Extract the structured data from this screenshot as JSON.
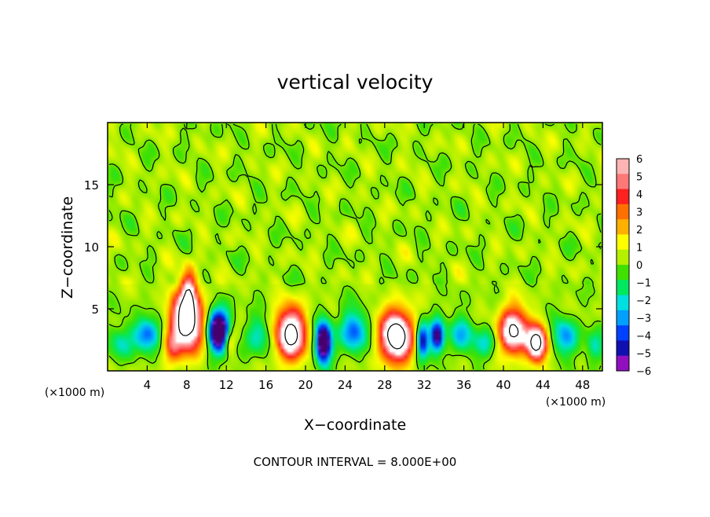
{
  "chart_data": {
    "type": "heatmap",
    "title": "vertical velocity",
    "xlabel": "X−coordinate",
    "ylabel": "Z−coordinate",
    "x_unit_left": "(×1000 m)",
    "x_unit_right": "(×1000 m)",
    "footer": "CONTOUR INTERVAL = 8.000E+00",
    "xlim": [
      0,
      50
    ],
    "ylim": [
      0,
      20
    ],
    "x_ticks": [
      4,
      8,
      12,
      16,
      20,
      24,
      28,
      32,
      36,
      40,
      44,
      48
    ],
    "x_tick_labels": [
      "4",
      "8",
      "12",
      "16",
      "20",
      "24",
      "28",
      "32",
      "36",
      "40",
      "44",
      "48"
    ],
    "y_ticks": [
      5,
      10,
      15
    ],
    "y_tick_labels": [
      "5",
      "10",
      "15"
    ],
    "colorbar": {
      "range": [
        -6,
        6
      ],
      "ticks": [
        6,
        5,
        4,
        3,
        2,
        1,
        0,
        -1,
        -2,
        -3,
        -4,
        -5,
        -6
      ],
      "tick_labels": [
        "6",
        "5",
        "4",
        "3",
        "2",
        "1",
        "0",
        "−1",
        "−2",
        "−3",
        "−4",
        "−5",
        "−6"
      ],
      "colors": [
        "#ffb4b4",
        "#ff7878",
        "#ff2020",
        "#ff7000",
        "#ffb000",
        "#ffff00",
        "#b4f000",
        "#40e000",
        "#00e860",
        "#00e0e0",
        "#00a0ff",
        "#0040ff",
        "#1010b0",
        "#9010c0"
      ]
    },
    "background_value": 0.3,
    "features": [
      {
        "x": 8.0,
        "z": 4.0,
        "amp": 10,
        "sx": 1.6,
        "sz": 2.4
      },
      {
        "x": 8.2,
        "z": 6.5,
        "amp": 4.5,
        "sx": 0.7,
        "sz": 1.6
      },
      {
        "x": 6.5,
        "z": 2.0,
        "amp": 2.5,
        "sx": 0.8,
        "sz": 1.4
      },
      {
        "x": 11.2,
        "z": 3.2,
        "amp": -9,
        "sx": 1.1,
        "sz": 1.7
      },
      {
        "x": 12.3,
        "z": 2.4,
        "amp": 3.2,
        "sx": 0.6,
        "sz": 1.0
      },
      {
        "x": 4.0,
        "z": 3.0,
        "amp": -4.5,
        "sx": 1.3,
        "sz": 1.3
      },
      {
        "x": 1.2,
        "z": 2.2,
        "amp": -2.2,
        "sx": 1.3,
        "sz": 1.3
      },
      {
        "x": 15.2,
        "z": 2.8,
        "amp": -2.5,
        "sx": 1.3,
        "sz": 1.6
      },
      {
        "x": 18.5,
        "z": 3.0,
        "amp": 9,
        "sx": 1.5,
        "sz": 2.0
      },
      {
        "x": 21.8,
        "z": 2.3,
        "amp": -9,
        "sx": 0.8,
        "sz": 1.6
      },
      {
        "x": 24.8,
        "z": 3.2,
        "amp": -4.5,
        "sx": 1.3,
        "sz": 1.6
      },
      {
        "x": 29.2,
        "z": 2.8,
        "amp": 10,
        "sx": 1.6,
        "sz": 2.0
      },
      {
        "x": 31.8,
        "z": 2.5,
        "amp": -6,
        "sx": 0.6,
        "sz": 1.4
      },
      {
        "x": 33.3,
        "z": 2.8,
        "amp": -7,
        "sx": 0.7,
        "sz": 1.3
      },
      {
        "x": 35.8,
        "z": 3.0,
        "amp": -3,
        "sx": 1.2,
        "sz": 1.4
      },
      {
        "x": 38.2,
        "z": 2.2,
        "amp": -2.5,
        "sx": 1.2,
        "sz": 1.2
      },
      {
        "x": 41.0,
        "z": 3.2,
        "amp": 8.5,
        "sx": 1.4,
        "sz": 1.8
      },
      {
        "x": 43.4,
        "z": 2.2,
        "amp": 9,
        "sx": 1.0,
        "sz": 1.4
      },
      {
        "x": 46.2,
        "z": 2.8,
        "amp": -3.5,
        "sx": 1.3,
        "sz": 1.5
      },
      {
        "x": 49.2,
        "z": 2.0,
        "amp": -2.5,
        "sx": 0.9,
        "sz": 1.3
      }
    ]
  }
}
